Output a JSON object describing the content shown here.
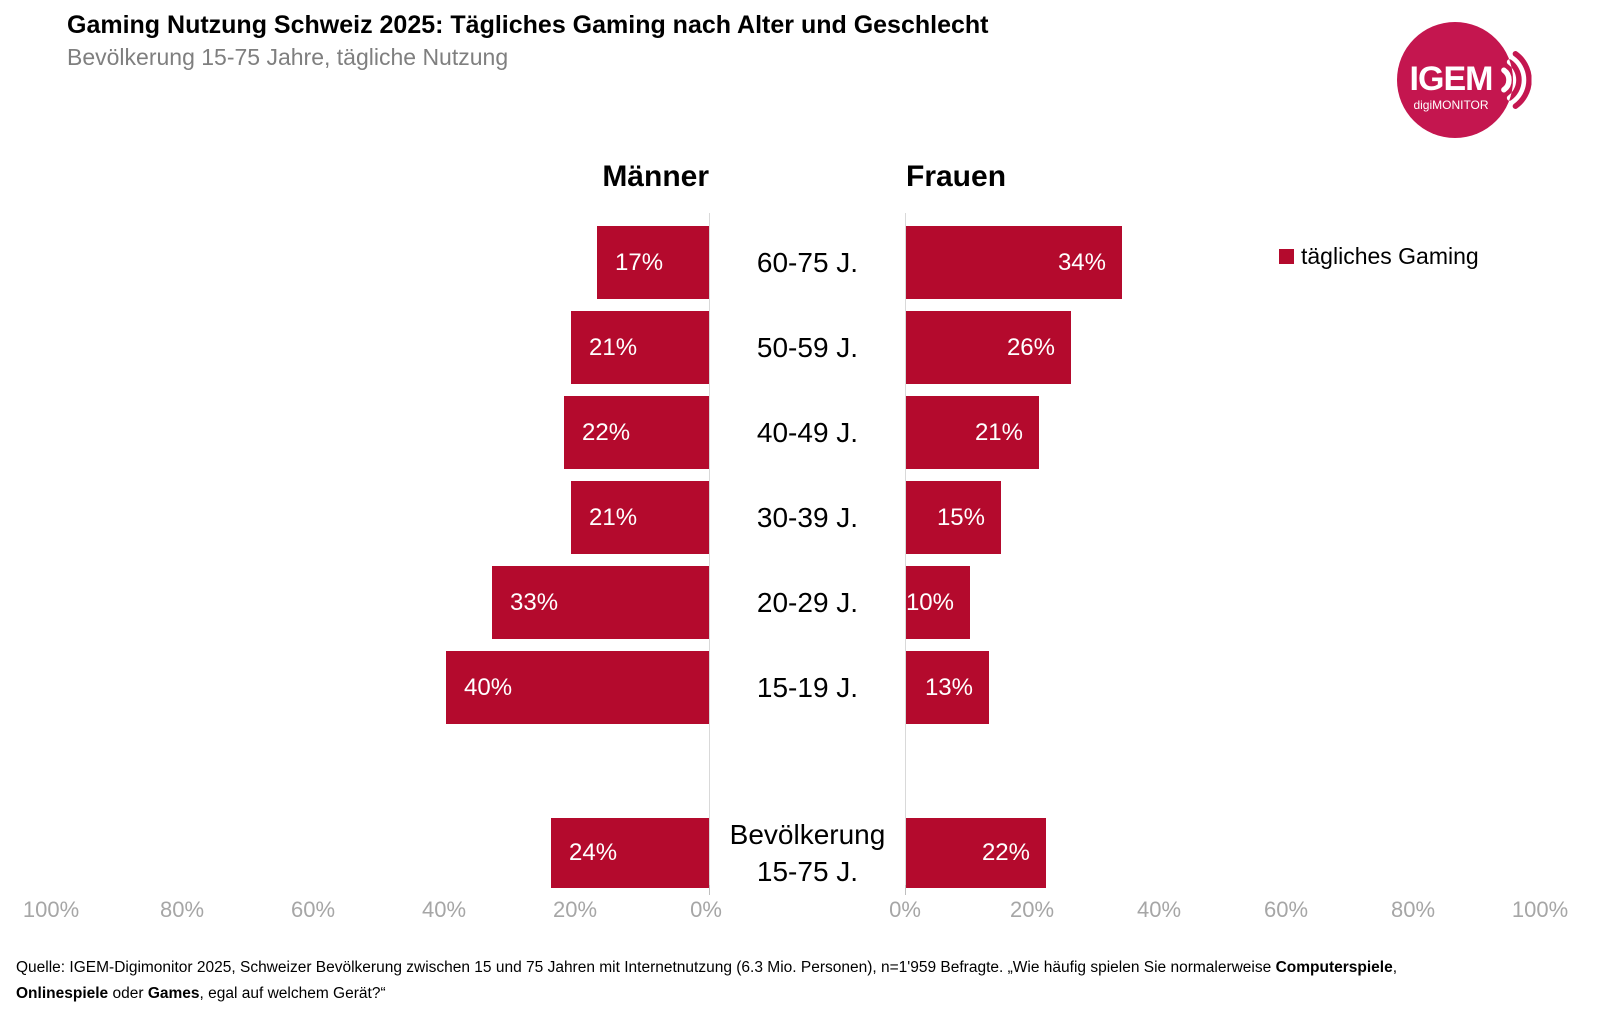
{
  "header": {
    "title": "Gaming Nutzung Schweiz 2025: Tägliches Gaming nach Alter und Geschlecht",
    "subtitle": "Bevölkerung 15-75 Jahre, tägliche Nutzung"
  },
  "logo": {
    "name": "IGEM digiMONITOR",
    "text": "IGEM",
    "subtext": "digiMONITOR",
    "color": "#C4164F"
  },
  "legend": {
    "label": "tägliches Gaming"
  },
  "colors": {
    "bar": "#B40A2D",
    "axis_text": "#A6A6A6",
    "subtitle_text": "#7F7F7F",
    "grid": "#D9D9D9"
  },
  "chart_data": {
    "type": "bar",
    "variant": "population-pyramid",
    "title": "Gaming Nutzung Schweiz 2025: Tägliches Gaming nach Alter und Geschlecht",
    "subtitle": "Bevölkerung 15-75 Jahre, tägliche Nutzung",
    "unit": "%",
    "categories": [
      "60-75 J.",
      "50-59 J.",
      "40-49 J.",
      "30-39 J.",
      "20-29 J.",
      "15-19 J.",
      "Bevölkerung 15-75 J."
    ],
    "series": [
      {
        "name": "Männer",
        "values": [
          17,
          21,
          22,
          21,
          33,
          40,
          24
        ]
      },
      {
        "name": "Frauen",
        "values": [
          34,
          26,
          21,
          15,
          10,
          13,
          22
        ]
      }
    ],
    "legend": [
      "tägliches Gaming"
    ],
    "legend_position": "right",
    "grid": "zero-lines-only",
    "axis": {
      "range": [
        0,
        100
      ],
      "left_ticks": [
        "100%",
        "80%",
        "60%",
        "40%",
        "20%",
        "0%"
      ],
      "right_ticks": [
        "0%",
        "20%",
        "40%",
        "60%",
        "80%",
        "100%"
      ]
    }
  },
  "footer": {
    "line1_normal": "Quelle: IGEM-Digimonitor 2025, Schweizer Bevölkerung zwischen 15 und 75 Jahren mit Internetnutzung (6.3 Mio. Personen), n=1'959 Befragte. „Wie häufig spielen Sie normalerweise ",
    "line1_bold": "Computerspiele",
    "line1_tail": ",",
    "line2_bold1": "Onlinespiele",
    "line2_sep": " oder ",
    "line2_bold2": "Games",
    "line2_tail": ", egal auf welchem Gerät?“"
  }
}
